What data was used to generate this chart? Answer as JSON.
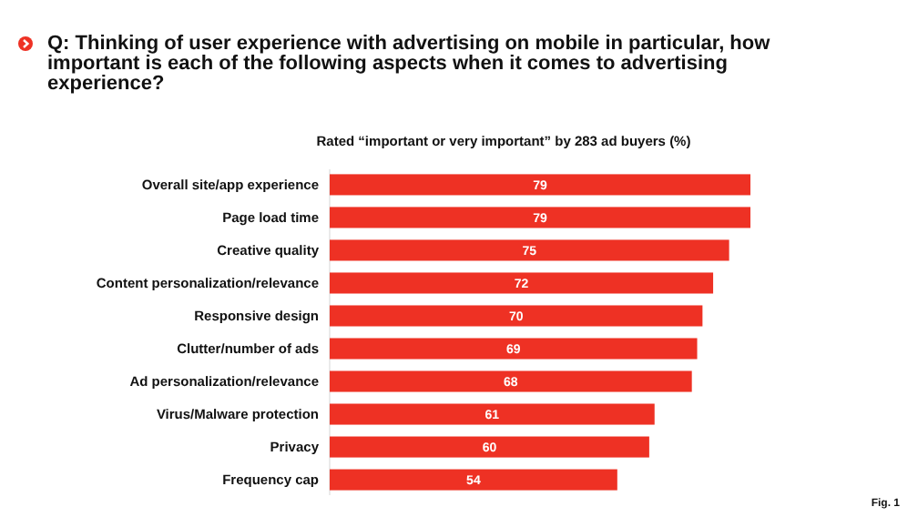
{
  "chart_data": {
    "type": "bar",
    "orientation": "horizontal",
    "title": "Q: Thinking of user experience with advertising on mobile in particular, how important is each of the following aspects when it comes to advertising experience?",
    "subtitle": "Rated “important or very important” by 283 ad buyers (%)",
    "categories": [
      "Overall site/app experience",
      "Page load time",
      "Creative quality",
      "Content personalization/relevance",
      "Responsive design",
      "Clutter/number of ads",
      "Ad personalization/relevance",
      "Virus/Malware protection",
      "Privacy",
      "Frequency cap"
    ],
    "values": [
      79,
      79,
      75,
      72,
      70,
      69,
      68,
      61,
      60,
      54
    ],
    "color": "#ee3124",
    "data_labels": true,
    "annotations": [
      "Fig. 1"
    ]
  }
}
